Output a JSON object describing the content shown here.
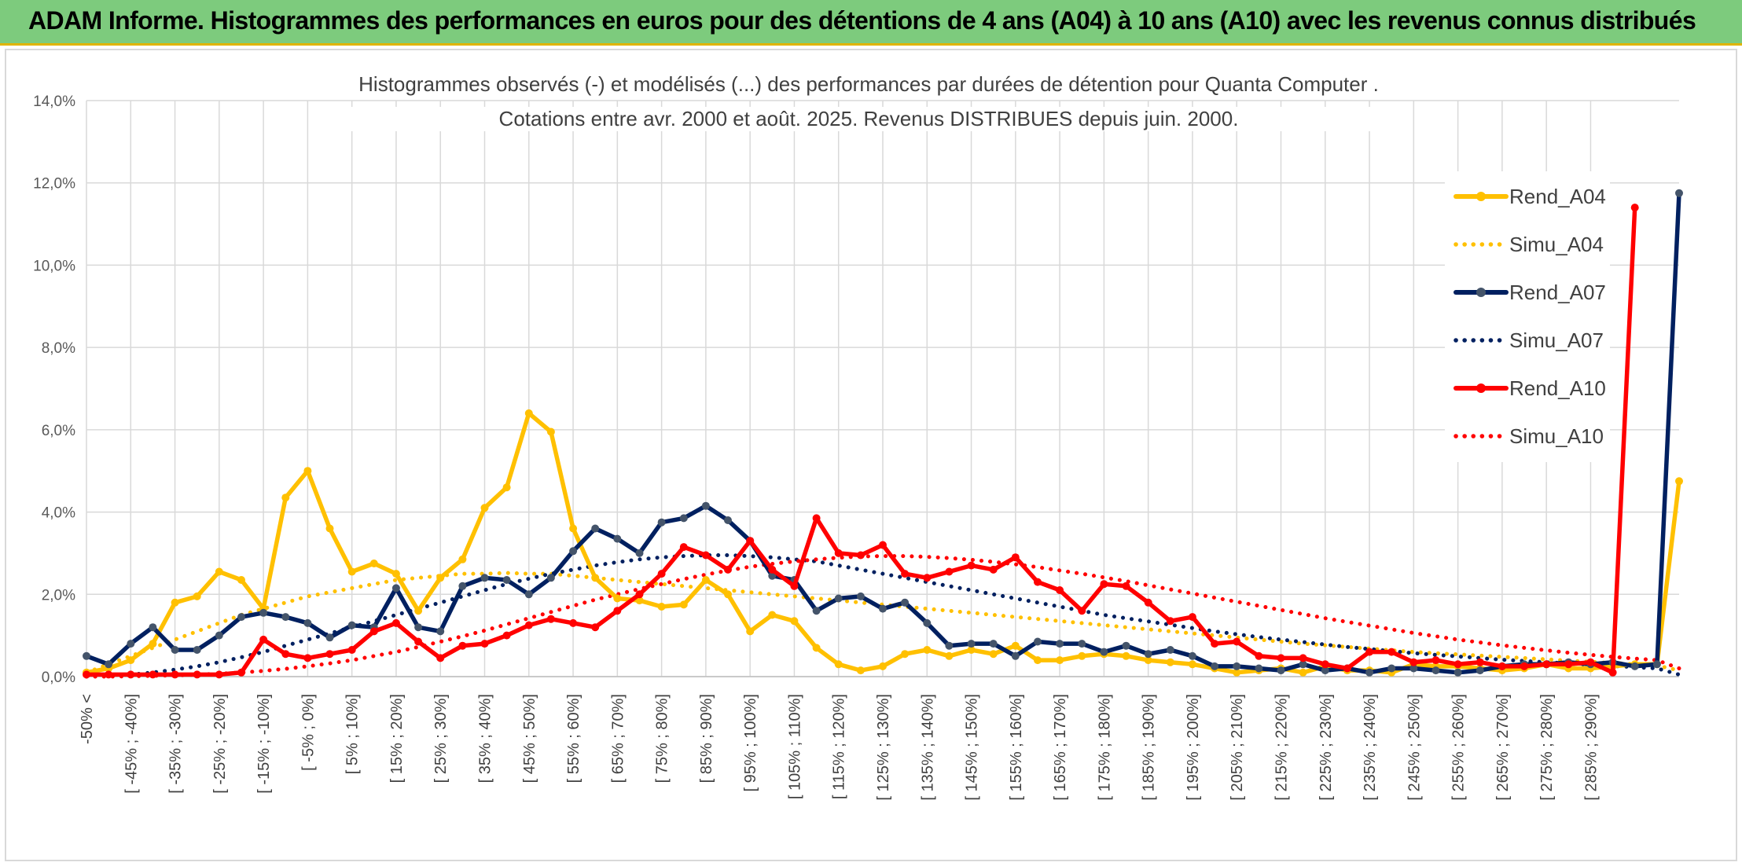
{
  "header": {
    "title": "ADAM Informe. Histogrammes des performances en euros pour des détentions de 4 ans (A04) à 10 ans (A10) avec les revenus connus distribués"
  },
  "chart_data": {
    "type": "line",
    "title_line1": "Histogrammes observés (-) et modélisés (...) des performances par durées de détention pour Quanta Computer .",
    "title_line2": "Cotations entre avr. 2000 et août. 2025. Revenus DISTRIBUES depuis juin. 2000.",
    "ylim": [
      0,
      14
    ],
    "yticks": [
      "0,0%",
      "2,0%",
      "4,0%",
      "6,0%",
      "8,0%",
      "10,0%",
      "12,0%",
      "14,0%"
    ],
    "grid": true,
    "legend_position": "right",
    "categories_labeled": [
      "-50% <",
      "[ -45% ; -40%]",
      "[ -35% ; -30%]",
      "[ -25% ; -20%]",
      "[ -15% ; -10%]",
      "[ -5% ; 0%]",
      "[ 5% ; 10%]",
      "[ 15% ; 20%]",
      "[ 25% ; 30%]",
      "[ 35% ; 40%]",
      "[ 45% ; 50%]",
      "[ 55% ; 60%]",
      "[ 65% ; 70%]",
      "[ 75% ; 80%]",
      "[ 85% ; 90%]",
      "[ 95% ; 100%]",
      "[ 105% ; 110%]",
      "[ 115% ; 120%]",
      "[ 125% ; 130%]",
      "[ 135% ; 140%]",
      "[ 145% ; 150%]",
      "[ 155% ; 160%]",
      "[ 165% ; 170%]",
      "[ 175% ; 180%]",
      "[ 185% ; 190%]",
      "[ 195% ; 200%]",
      "[ 205% ; 210%]",
      "[ 215% ; 220%]",
      "[ 225% ; 230%]",
      "[ 235% ; 240%]",
      "[ 245% ; 250%]",
      "[ 255% ; 260%]",
      "[ 265% ; 270%]",
      "[ 275% ; 280%]",
      "[ 285% ; 290%]"
    ],
    "series": [
      {
        "name": "Rend_A04",
        "style": "solid",
        "color": "#ffc000",
        "values": [
          0.1,
          0.2,
          0.4,
          0.8,
          1.8,
          1.95,
          2.55,
          2.35,
          1.65,
          4.35,
          5.0,
          3.6,
          2.55,
          2.75,
          2.5,
          1.6,
          2.4,
          2.85,
          4.1,
          4.6,
          6.4,
          5.95,
          3.6,
          2.4,
          1.9,
          1.85,
          1.7,
          1.75,
          2.35,
          2.0,
          1.1,
          1.5,
          1.35,
          0.7,
          0.3,
          0.15,
          0.25,
          0.55,
          0.65,
          0.5,
          0.65,
          0.55,
          0.75,
          0.4,
          0.4,
          0.5,
          0.55,
          0.5,
          0.4,
          0.35,
          0.3,
          0.2,
          0.1,
          0.15,
          0.2,
          0.1,
          0.25,
          0.15,
          0.15,
          0.1,
          0.3,
          0.25,
          0.25,
          0.2,
          0.15,
          0.2,
          0.3,
          0.2,
          0.2,
          0.25,
          0.3,
          0.3,
          4.75
        ]
      },
      {
        "name": "Simu_A04",
        "style": "dotted",
        "color": "#ffc000",
        "values": [
          0.1,
          0.3,
          0.5,
          0.7,
          0.9,
          1.1,
          1.3,
          1.5,
          1.65,
          1.8,
          1.95,
          2.05,
          2.15,
          2.25,
          2.35,
          2.4,
          2.45,
          2.5,
          2.5,
          2.52,
          2.5,
          2.5,
          2.45,
          2.4,
          2.35,
          2.3,
          2.25,
          2.2,
          2.15,
          2.1,
          2.05,
          2.0,
          1.95,
          1.9,
          1.85,
          1.8,
          1.75,
          1.7,
          1.65,
          1.6,
          1.55,
          1.5,
          1.45,
          1.4,
          1.35,
          1.3,
          1.25,
          1.2,
          1.15,
          1.1,
          1.05,
          1.0,
          0.95,
          0.9,
          0.85,
          0.8,
          0.76,
          0.72,
          0.68,
          0.64,
          0.6,
          0.57,
          0.54,
          0.51,
          0.48,
          0.45,
          0.42,
          0.39,
          0.36,
          0.33,
          0.3,
          0.27,
          0.15
        ]
      },
      {
        "name": "Rend_A07",
        "style": "solid",
        "color": "#002060",
        "values": [
          0.5,
          0.3,
          0.8,
          1.2,
          0.65,
          0.65,
          1.0,
          1.45,
          1.55,
          1.45,
          1.3,
          0.95,
          1.25,
          1.2,
          2.15,
          1.2,
          1.1,
          2.2,
          2.4,
          2.35,
          2.0,
          2.4,
          3.05,
          3.6,
          3.35,
          3.0,
          3.75,
          3.85,
          4.15,
          3.8,
          3.3,
          2.45,
          2.35,
          1.6,
          1.9,
          1.95,
          1.65,
          1.8,
          1.3,
          0.75,
          0.8,
          0.8,
          0.5,
          0.85,
          0.8,
          0.8,
          0.6,
          0.75,
          0.55,
          0.65,
          0.5,
          0.25,
          0.25,
          0.2,
          0.15,
          0.3,
          0.15,
          0.2,
          0.1,
          0.2,
          0.2,
          0.15,
          0.1,
          0.15,
          0.25,
          0.3,
          0.3,
          0.35,
          0.3,
          0.35,
          0.25,
          0.3,
          11.75
        ]
      },
      {
        "name": "Simu_A07",
        "style": "dotted",
        "color": "#002060",
        "values": [
          0.0,
          0.02,
          0.05,
          0.1,
          0.17,
          0.25,
          0.35,
          0.47,
          0.6,
          0.75,
          0.9,
          1.05,
          1.2,
          1.35,
          1.5,
          1.65,
          1.8,
          1.95,
          2.1,
          2.25,
          2.38,
          2.5,
          2.6,
          2.7,
          2.78,
          2.85,
          2.9,
          2.93,
          2.95,
          2.95,
          2.93,
          2.9,
          2.85,
          2.8,
          2.7,
          2.6,
          2.5,
          2.4,
          2.3,
          2.2,
          2.1,
          2.0,
          1.9,
          1.8,
          1.7,
          1.6,
          1.5,
          1.42,
          1.34,
          1.26,
          1.18,
          1.1,
          1.03,
          0.96,
          0.9,
          0.84,
          0.78,
          0.72,
          0.67,
          0.62,
          0.57,
          0.53,
          0.49,
          0.45,
          0.41,
          0.38,
          0.35,
          0.32,
          0.29,
          0.26,
          0.23,
          0.2,
          0.05
        ]
      },
      {
        "name": "Rend_A10",
        "style": "solid",
        "color": "#ff0000",
        "values": [
          0.05,
          0.05,
          0.05,
          0.05,
          0.05,
          0.05,
          0.05,
          0.1,
          0.9,
          0.55,
          0.45,
          0.55,
          0.65,
          1.1,
          1.3,
          0.85,
          0.45,
          0.75,
          0.8,
          1.0,
          1.25,
          1.4,
          1.3,
          1.2,
          1.6,
          2.0,
          2.5,
          3.15,
          2.95,
          2.6,
          3.3,
          2.6,
          2.2,
          3.85,
          3.0,
          2.95,
          3.2,
          2.5,
          2.4,
          2.55,
          2.7,
          2.6,
          2.9,
          2.3,
          2.1,
          1.6,
          2.25,
          2.2,
          1.8,
          1.35,
          1.45,
          0.8,
          0.85,
          0.5,
          0.45,
          0.45,
          0.3,
          0.2,
          0.6,
          0.6,
          0.35,
          0.4,
          0.3,
          0.35,
          0.25,
          0.25,
          0.3,
          0.3,
          0.35,
          0.1,
          11.4
        ]
      },
      {
        "name": "Simu_A10",
        "style": "dotted",
        "color": "#ff0000",
        "values": [
          0.0,
          0.0,
          0.01,
          0.02,
          0.03,
          0.05,
          0.07,
          0.1,
          0.14,
          0.19,
          0.25,
          0.32,
          0.4,
          0.5,
          0.6,
          0.72,
          0.85,
          0.98,
          1.12,
          1.27,
          1.42,
          1.57,
          1.72,
          1.87,
          2.0,
          2.13,
          2.25,
          2.37,
          2.48,
          2.58,
          2.67,
          2.74,
          2.8,
          2.85,
          2.89,
          2.92,
          2.93,
          2.93,
          2.91,
          2.88,
          2.84,
          2.79,
          2.73,
          2.66,
          2.58,
          2.5,
          2.41,
          2.32,
          2.22,
          2.12,
          2.02,
          1.92,
          1.82,
          1.72,
          1.62,
          1.52,
          1.42,
          1.33,
          1.24,
          1.15,
          1.06,
          0.98,
          0.9,
          0.83,
          0.76,
          0.7,
          0.64,
          0.58,
          0.53,
          0.48,
          0.44,
          0.4,
          0.2
        ]
      }
    ]
  }
}
